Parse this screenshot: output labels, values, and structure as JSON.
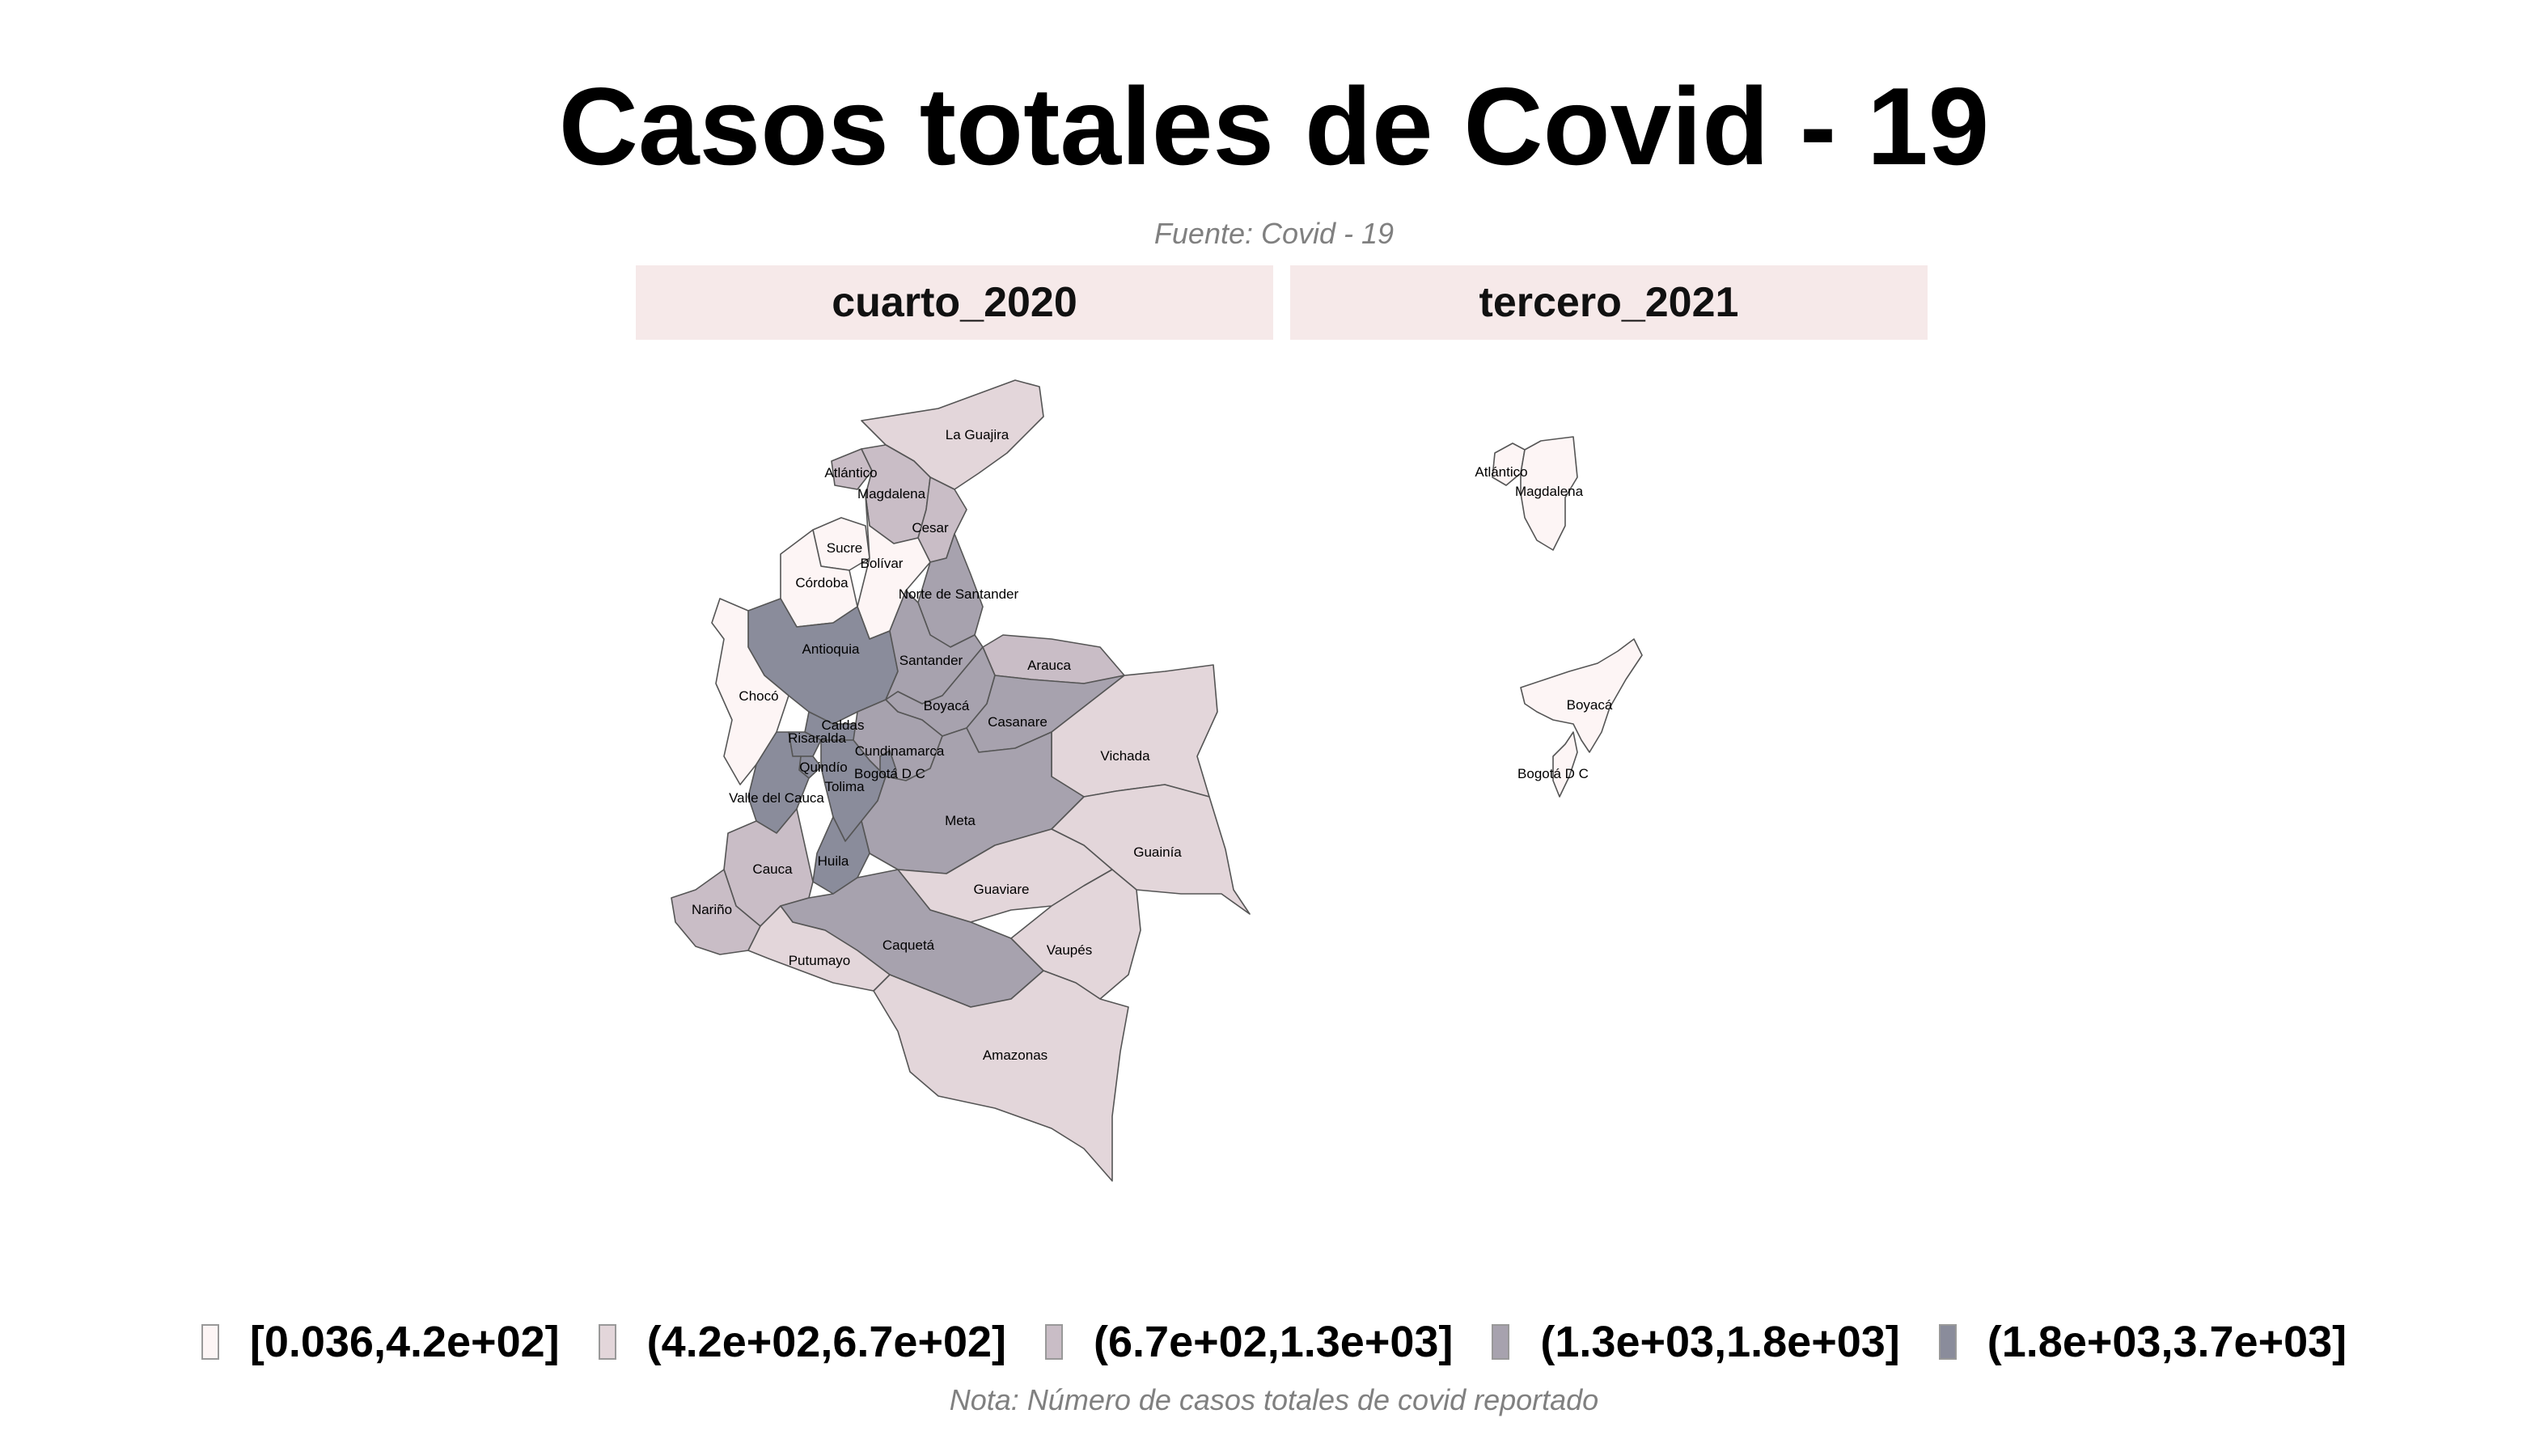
{
  "title": "Casos totales de Covid - 19",
  "subtitle": "Fuente: Covid - 19",
  "note": "Nota: Número de casos totales de covid reportado",
  "palette": [
    "#fdf5f5",
    "#e3d6da",
    "#c9bdc6",
    "#a7a2ae",
    "#8a8c9b"
  ],
  "panels": [
    {
      "name": "cuarto_2020"
    },
    {
      "name": "tercero_2021"
    }
  ],
  "legend": [
    {
      "label": "[0.036,4.2e+02]",
      "color": "#fdf5f5"
    },
    {
      "label": "(4.2e+02,6.7e+02]",
      "color": "#e3d6da"
    },
    {
      "label": "(6.7e+02,1.3e+03]",
      "color": "#c9bdc6"
    },
    {
      "label": "(1.3e+03,1.8e+03]",
      "color": "#a7a2ae"
    },
    {
      "label": "(1.8e+03,3.7e+03]",
      "color": "#8a8c9b"
    }
  ],
  "regions_2020": [
    {
      "name": "La Guajira",
      "class": 1
    },
    {
      "name": "Atlántico",
      "class": 2
    },
    {
      "name": "Magdalena",
      "class": 2
    },
    {
      "name": "Cesar",
      "class": 2
    },
    {
      "name": "Sucre",
      "class": 0
    },
    {
      "name": "Bolívar",
      "class": 0
    },
    {
      "name": "Córdoba",
      "class": 0
    },
    {
      "name": "Norte de Santander",
      "class": 3
    },
    {
      "name": "Antioquia",
      "class": 4
    },
    {
      "name": "Santander",
      "class": 3
    },
    {
      "name": "Arauca",
      "class": 2
    },
    {
      "name": "Chocó",
      "class": 0
    },
    {
      "name": "Boyacá",
      "class": 3
    },
    {
      "name": "Casanare",
      "class": 3
    },
    {
      "name": "Caldas",
      "class": 4
    },
    {
      "name": "Risaralda",
      "class": 4
    },
    {
      "name": "Cundinamarca",
      "class": 3
    },
    {
      "name": "Vichada",
      "class": 1
    },
    {
      "name": "Quindío",
      "class": 4
    },
    {
      "name": "Bogotá D C",
      "class": 4
    },
    {
      "name": "Tolima",
      "class": 4
    },
    {
      "name": "Valle del Cauca",
      "class": 4
    },
    {
      "name": "Meta",
      "class": 3
    },
    {
      "name": "Huila",
      "class": 4
    },
    {
      "name": "Guainía",
      "class": 1
    },
    {
      "name": "Cauca",
      "class": 2
    },
    {
      "name": "Guaviare",
      "class": 1
    },
    {
      "name": "Nariño",
      "class": 2
    },
    {
      "name": "Caquetá",
      "class": 3
    },
    {
      "name": "Vaupés",
      "class": 1
    },
    {
      "name": "Putumayo",
      "class": 1
    },
    {
      "name": "Amazonas",
      "class": 1
    }
  ],
  "regions_2021": [
    {
      "name": "Atlántico",
      "class": 0
    },
    {
      "name": "Magdalena",
      "class": 0
    },
    {
      "name": "Boyacá",
      "class": 0
    },
    {
      "name": "Bogotá D C",
      "class": 0
    }
  ]
}
